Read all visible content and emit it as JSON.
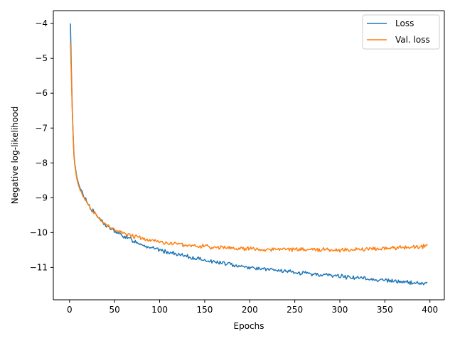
{
  "chart_data": {
    "type": "line",
    "title": "",
    "xlabel": "Epochs",
    "ylabel": "Negative log-likelihood",
    "xlim": [
      -18,
      416
    ],
    "ylim": [
      -11.93,
      -3.63
    ],
    "xticks": [
      0,
      50,
      100,
      150,
      200,
      250,
      300,
      350,
      400
    ],
    "xtick_labels": [
      "0",
      "50",
      "100",
      "150",
      "200",
      "250",
      "300",
      "350",
      "400"
    ],
    "yticks": [
      -11,
      -10,
      -9,
      -8,
      -7,
      -6,
      -5,
      -4
    ],
    "ytick_labels": [
      "−11",
      "−10",
      "−9",
      "−8",
      "−7",
      "−6",
      "−5",
      "−4"
    ],
    "grid": false,
    "legend_position": "top-right",
    "series": [
      {
        "name": "Loss",
        "color": "#1f77b4",
        "x": [
          1,
          2,
          3,
          4,
          5,
          6,
          8,
          10,
          12,
          15,
          18,
          20,
          25,
          30,
          35,
          40,
          45,
          50,
          60,
          70,
          80,
          90,
          100,
          110,
          120,
          130,
          140,
          150,
          160,
          170,
          180,
          190,
          200,
          210,
          220,
          230,
          240,
          250,
          260,
          270,
          280,
          290,
          300,
          310,
          320,
          330,
          340,
          350,
          360,
          370,
          380,
          390,
          397
        ],
        "y": [
          -4.0,
          -5.3,
          -6.4,
          -7.2,
          -7.8,
          -8.05,
          -8.4,
          -8.6,
          -8.75,
          -8.9,
          -9.05,
          -9.15,
          -9.35,
          -9.5,
          -9.65,
          -9.78,
          -9.88,
          -9.97,
          -10.1,
          -10.22,
          -10.33,
          -10.43,
          -10.5,
          -10.57,
          -10.63,
          -10.69,
          -10.74,
          -10.79,
          -10.84,
          -10.88,
          -10.92,
          -10.96,
          -11.0,
          -11.03,
          -11.06,
          -11.09,
          -11.12,
          -11.15,
          -11.17,
          -11.19,
          -11.21,
          -11.23,
          -11.25,
          -11.28,
          -11.3,
          -11.33,
          -11.35,
          -11.37,
          -11.4,
          -11.42,
          -11.44,
          -11.46,
          -11.44
        ]
      },
      {
        "name": "Val. loss",
        "color": "#ff7f0e",
        "x": [
          1,
          2,
          3,
          4,
          5,
          6,
          8,
          10,
          12,
          15,
          18,
          20,
          25,
          30,
          35,
          40,
          45,
          50,
          60,
          70,
          80,
          90,
          100,
          110,
          120,
          130,
          140,
          150,
          160,
          170,
          180,
          190,
          200,
          210,
          220,
          230,
          240,
          250,
          260,
          270,
          280,
          290,
          300,
          310,
          320,
          330,
          340,
          350,
          360,
          370,
          380,
          390,
          397
        ],
        "y": [
          -4.55,
          -5.5,
          -6.5,
          -7.25,
          -7.85,
          -8.1,
          -8.45,
          -8.65,
          -8.8,
          -8.95,
          -9.08,
          -9.17,
          -9.36,
          -9.52,
          -9.65,
          -9.76,
          -9.85,
          -9.92,
          -10.02,
          -10.1,
          -10.17,
          -10.22,
          -10.27,
          -10.3,
          -10.33,
          -10.36,
          -10.38,
          -10.4,
          -10.42,
          -10.43,
          -10.45,
          -10.46,
          -10.47,
          -10.47,
          -10.48,
          -10.48,
          -10.49,
          -10.49,
          -10.49,
          -10.49,
          -10.5,
          -10.5,
          -10.5,
          -10.49,
          -10.48,
          -10.47,
          -10.46,
          -10.45,
          -10.44,
          -10.43,
          -10.42,
          -10.41,
          -10.38
        ]
      }
    ]
  }
}
